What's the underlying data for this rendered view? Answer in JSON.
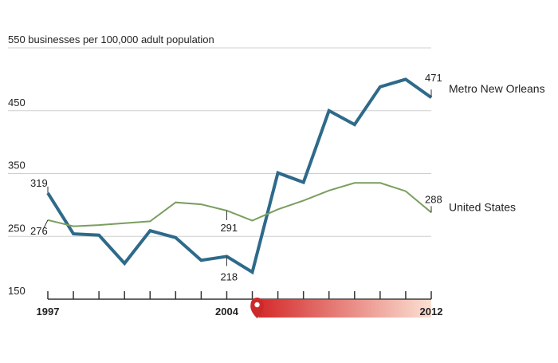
{
  "chart_data": {
    "type": "line",
    "ylabel": "businesses per 100,000 adult population",
    "ylim": [
      150,
      550
    ],
    "yticks": [
      150,
      250,
      350,
      450,
      550
    ],
    "xlim": [
      1997,
      2012
    ],
    "xtick_labels": [
      "1997",
      "2004",
      "2012"
    ],
    "x": [
      1997,
      1998,
      1999,
      2000,
      2001,
      2002,
      2003,
      2004,
      2005,
      2006,
      2007,
      2008,
      2009,
      2010,
      2011,
      2012
    ],
    "grid": true,
    "series": [
      {
        "name": "Metro New Orleans",
        "color": "#2e6a8a",
        "values": [
          319,
          254,
          252,
          207,
          259,
          248,
          212,
          218,
          193,
          351,
          336,
          450,
          428,
          488,
          500,
          471
        ]
      },
      {
        "name": "United States",
        "color": "#7a9e5e",
        "values": [
          276,
          266,
          268,
          271,
          274,
          304,
          301,
          291,
          275,
          293,
          307,
          323,
          335,
          335,
          322,
          288
        ]
      }
    ],
    "annotations": [
      {
        "series": 0,
        "x": 1997,
        "value": "319"
      },
      {
        "series": 0,
        "x": 2004,
        "value": "218"
      },
      {
        "series": 0,
        "x": 2012,
        "value": "471"
      },
      {
        "series": 1,
        "x": 1997,
        "value": "276"
      },
      {
        "series": 1,
        "x": 2004,
        "value": "291"
      },
      {
        "series": 1,
        "x": 2012,
        "value": "288"
      }
    ],
    "marker": {
      "icon": "hurricane-pin-icon",
      "color": "#cc2a2a",
      "band_start": "#d42b2b",
      "band_end": "#fbe0d3",
      "x_start": 2005,
      "x_end": 2012
    }
  }
}
